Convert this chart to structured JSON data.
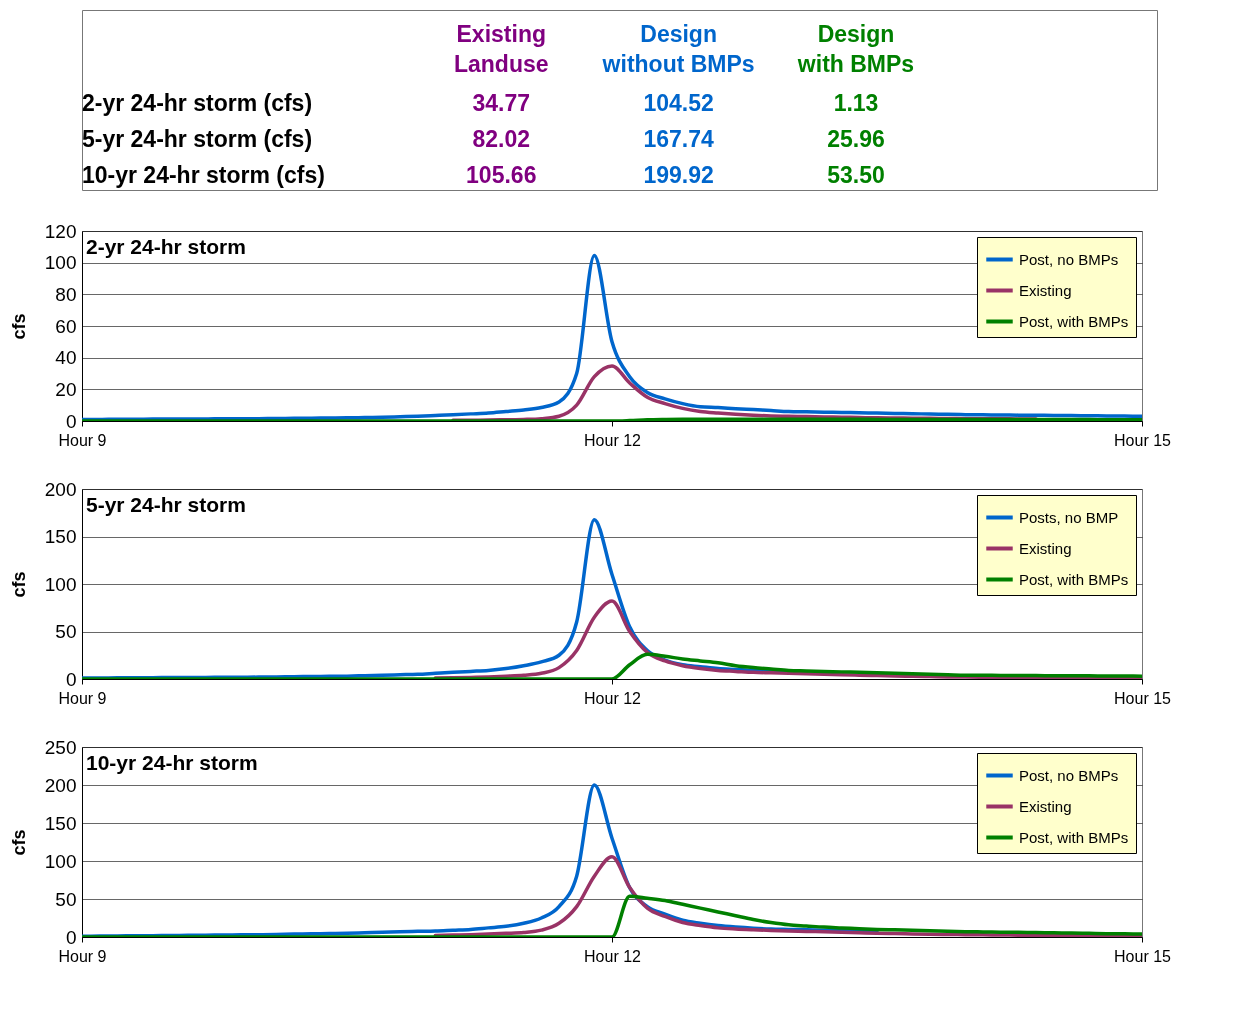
{
  "chart_data": [
    {
      "type": "other",
      "categories": [
        "2-yr 24-hr storm (cfs)",
        "5-yr 24-hr storm (cfs)",
        "10-yr 24-hr storm (cfs)"
      ],
      "series": [
        {
          "name": "Existing Landuse",
          "color": "#800080",
          "values": [
            34.77,
            82.02,
            105.66
          ],
          "value_labels": [
            "34.77",
            "82.02",
            "105.66"
          ]
        },
        {
          "name": "Design without BMPs",
          "color": "#0066cc",
          "values": [
            104.52,
            167.74,
            199.92
          ],
          "value_labels": [
            "104.52",
            "167.74",
            "199.92"
          ]
        },
        {
          "name": "Design with BMPs",
          "color": "#008000",
          "values": [
            1.13,
            25.96,
            53.5
          ],
          "value_labels": [
            "1.13",
            "25.96",
            "53.50"
          ]
        }
      ]
    },
    {
      "type": "line",
      "title": "2-yr 24-hr storm",
      "ylabel": "cfs",
      "categories": [
        "Hour 9",
        null,
        null,
        null,
        null,
        null,
        null,
        null,
        null,
        null,
        null,
        null,
        null,
        null,
        null,
        null,
        null,
        null,
        null,
        null,
        null,
        null,
        null,
        null,
        null,
        null,
        null,
        null,
        null,
        null,
        "Hour 12",
        null,
        null,
        null,
        null,
        null,
        null,
        null,
        null,
        null,
        null,
        null,
        null,
        null,
        null,
        null,
        null,
        null,
        null,
        null,
        null,
        null,
        null,
        null,
        null,
        null,
        null,
        null,
        null,
        null,
        "Hour 15"
      ],
      "ylim": [
        0,
        120
      ],
      "yticks": [
        0,
        20,
        40,
        60,
        80,
        100,
        120
      ],
      "grid": "y",
      "legend": "top right",
      "marker": "none",
      "line_style": "solid",
      "series": [
        {
          "name": "Post, no BMPs",
          "color": "#0066cc",
          "values": [
            1,
            1,
            1.1,
            1.1,
            1.2,
            1.2,
            1.3,
            1.3,
            1.4,
            1.4,
            1.5,
            1.6,
            1.7,
            1.8,
            1.9,
            2,
            2.2,
            2.4,
            2.7,
            3,
            3.5,
            4,
            4.5,
            5,
            6,
            7,
            8.5,
            12,
            30,
            104.52,
            50,
            28,
            18,
            14,
            11,
            9,
            8.5,
            7.8,
            7.2,
            6.6,
            6,
            5.8,
            5.6,
            5.4,
            5.2,
            5,
            4.8,
            4.6,
            4.4,
            4.2,
            4,
            3.9,
            3.8,
            3.7,
            3.6,
            3.5,
            3.4,
            3.3,
            3.2,
            3.1,
            3
          ]
        },
        {
          "name": "Existing",
          "color": "#993366",
          "values": [
            null,
            null,
            null,
            null,
            null,
            null,
            null,
            null,
            null,
            null,
            null,
            null,
            null,
            null,
            null,
            null,
            null,
            null,
            null,
            null,
            null,
            0.4,
            0.5,
            0.6,
            0.8,
            1,
            1.5,
            3,
            10,
            28,
            34.77,
            24,
            15,
            11,
            8,
            6,
            5,
            4.2,
            3.6,
            3.2,
            3,
            2.8,
            2.6,
            2.4,
            2.2,
            2,
            1.9,
            1.8,
            1.7,
            1.6,
            1.5,
            1.4,
            1.4,
            1.3,
            1.3,
            null,
            null,
            null,
            null,
            null,
            null
          ]
        },
        {
          "name": "Post, with BMPs",
          "color": "#008000",
          "values": [
            0,
            0,
            0,
            0,
            0,
            0,
            0,
            0,
            0,
            0,
            0,
            0,
            0,
            0,
            0,
            0,
            0,
            0,
            0,
            0,
            0,
            0,
            0,
            0,
            0,
            0,
            0,
            0,
            0,
            0,
            0,
            0.3,
            0.8,
            1,
            1.1,
            1.1,
            1.1,
            1.1,
            1.1,
            1.1,
            1.13,
            1.1,
            1.1,
            1.1,
            1.1,
            1,
            1,
            1,
            1,
            1,
            1,
            1,
            0.9,
            0.9,
            0.9,
            0.9,
            0.9,
            0.9,
            0.8,
            0.8,
            0.8
          ]
        }
      ]
    },
    {
      "type": "line",
      "title": "5-yr 24-hr storm",
      "ylabel": "cfs",
      "categories": [
        "Hour 9",
        null,
        null,
        null,
        null,
        null,
        null,
        null,
        null,
        null,
        null,
        null,
        null,
        null,
        null,
        null,
        null,
        null,
        null,
        null,
        null,
        null,
        null,
        null,
        null,
        null,
        null,
        null,
        null,
        null,
        "Hour 12",
        null,
        null,
        null,
        null,
        null,
        null,
        null,
        null,
        null,
        null,
        null,
        null,
        null,
        null,
        null,
        null,
        null,
        null,
        null,
        null,
        null,
        null,
        null,
        null,
        null,
        null,
        null,
        null,
        null,
        "Hour 15"
      ],
      "ylim": [
        0,
        200
      ],
      "yticks": [
        0,
        50,
        100,
        150,
        200
      ],
      "grid": "y",
      "legend": "top right",
      "marker": "none",
      "line_style": "solid",
      "series": [
        {
          "name": "Posts, no BMP",
          "color": "#0066cc",
          "values": [
            1,
            1.1,
            1.2,
            1.3,
            1.4,
            1.5,
            1.6,
            1.7,
            1.8,
            1.9,
            2,
            2.2,
            2.4,
            2.6,
            2.8,
            3,
            3.5,
            4,
            4.5,
            5,
            6,
            7,
            8,
            9,
            11,
            14,
            18,
            25,
            60,
            167.74,
            110,
            55,
            30,
            20,
            15,
            13,
            11,
            10,
            9,
            8.5,
            8,
            null,
            null,
            null,
            null,
            null,
            null,
            null,
            null,
            null,
            null,
            null,
            null,
            null,
            null,
            null,
            null,
            null,
            null,
            null,
            null
          ]
        },
        {
          "name": "Existing",
          "color": "#993366",
          "values": [
            null,
            null,
            null,
            null,
            null,
            null,
            null,
            null,
            null,
            null,
            null,
            null,
            null,
            null,
            null,
            null,
            null,
            null,
            null,
            null,
            1,
            1.3,
            1.7,
            2.2,
            3,
            4,
            6,
            12,
            30,
            65,
            82.02,
            50,
            28,
            19,
            14,
            11,
            9,
            8,
            7,
            6.5,
            6,
            5.5,
            5,
            4.5,
            4,
            3.6,
            3.2,
            2.8,
            2.5,
            2.2,
            2,
            1.9,
            1.8,
            1.7,
            1.6,
            1.5,
            1.4,
            1.3,
            1.2,
            1.1,
            1
          ]
        },
        {
          "name": "Post, with BMPs",
          "color": "#008000",
          "values": [
            0,
            0,
            0,
            0,
            0,
            0,
            0,
            0,
            0,
            0,
            0,
            0,
            0,
            0,
            0,
            0,
            0,
            0,
            0,
            0,
            0,
            0,
            0,
            0,
            0,
            0,
            0,
            0,
            0,
            0,
            0,
            15,
            25.96,
            24,
            21,
            19,
            17,
            14,
            12,
            10.5,
            9,
            8.5,
            8,
            7.5,
            7,
            6.5,
            6,
            5.5,
            5,
            4.5,
            4,
            3.9,
            3.8,
            3.7,
            3.6,
            3.5,
            3.4,
            3.3,
            3.2,
            3.1,
            3
          ]
        }
      ]
    },
    {
      "type": "line",
      "title": "10-yr 24-hr storm",
      "ylabel": "cfs",
      "categories": [
        "Hour 9",
        null,
        null,
        null,
        null,
        null,
        null,
        null,
        null,
        null,
        null,
        null,
        null,
        null,
        null,
        null,
        null,
        null,
        null,
        null,
        null,
        null,
        null,
        null,
        null,
        null,
        null,
        null,
        null,
        null,
        "Hour 12",
        null,
        null,
        null,
        null,
        null,
        null,
        null,
        null,
        null,
        null,
        null,
        null,
        null,
        null,
        null,
        null,
        null,
        null,
        null,
        null,
        null,
        null,
        null,
        null,
        null,
        null,
        null,
        null,
        null,
        "Hour 15"
      ],
      "ylim": [
        0,
        250
      ],
      "yticks": [
        0,
        50,
        100,
        150,
        200,
        250
      ],
      "grid": "y",
      "legend": "top right",
      "marker": "none",
      "line_style": "solid",
      "series": [
        {
          "name": "Post, no BMPs",
          "color": "#0066cc",
          "values": [
            1,
            1.2,
            1.4,
            1.6,
            1.8,
            2,
            2.2,
            2.4,
            2.6,
            2.8,
            3,
            3.4,
            3.8,
            4.2,
            4.6,
            5,
            5.6,
            6.2,
            7,
            7.5,
            8,
            9,
            10,
            12,
            14,
            18,
            25,
            40,
            80,
            199.92,
            130,
            65,
            40,
            30,
            22,
            18,
            15,
            13,
            11.5,
            10.5,
            10,
            9.5,
            9,
            8.5,
            8,
            7.5,
            null,
            null,
            null,
            null,
            null,
            null,
            null,
            null,
            null,
            null,
            null,
            null,
            null,
            null,
            null
          ]
        },
        {
          "name": "Existing",
          "color": "#993366",
          "values": [
            null,
            null,
            null,
            null,
            null,
            null,
            null,
            null,
            null,
            null,
            null,
            null,
            null,
            null,
            null,
            null,
            null,
            null,
            null,
            null,
            2,
            2.5,
            3,
            3.8,
            4.8,
            6,
            9,
            18,
            40,
            80,
            105.66,
            65,
            38,
            27,
            19,
            15,
            12,
            10.5,
            9.5,
            8.7,
            8,
            7.4,
            6.8,
            6.2,
            5.6,
            5,
            4.5,
            4,
            3.6,
            3.3,
            3,
            2.8,
            2.6,
            2.4,
            2.2,
            2,
            1.8,
            1.6,
            1.4,
            1.2,
            1
          ]
        },
        {
          "name": "Post, with BMPs",
          "color": "#008000",
          "values": [
            0,
            0,
            0,
            0,
            0,
            0,
            0,
            0,
            0,
            0,
            0,
            0,
            0,
            0,
            0,
            0,
            0,
            0,
            0,
            0,
            0,
            0,
            0,
            0,
            0,
            0,
            0,
            0,
            0,
            0,
            0,
            53.5,
            51,
            48,
            43,
            38,
            33,
            28,
            23,
            19,
            16,
            14.5,
            13,
            12,
            11,
            10,
            9.4,
            8.8,
            8.2,
            7.6,
            7,
            6.7,
            6.4,
            6.1,
            5.8,
            5.5,
            5.2,
            4.8,
            4.4,
            4.2,
            4
          ]
        }
      ]
    }
  ]
}
